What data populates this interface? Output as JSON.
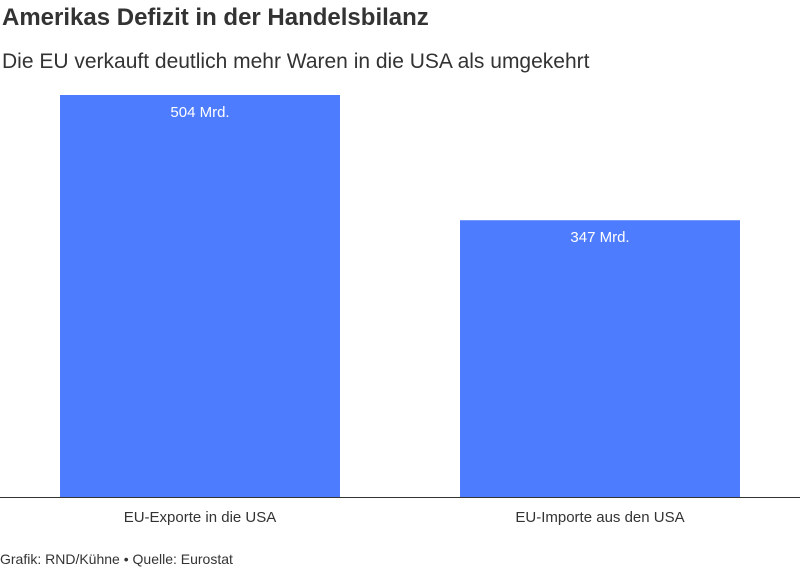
{
  "chart_data": {
    "type": "bar",
    "title": "Amerikas Defizit in der Handelsbilanz",
    "subtitle": "Die EU verkauft deutlich mehr Waren in die USA als umgekehrt",
    "categories": [
      "EU-Exporte in die USA",
      "EU-Importe aus den USA"
    ],
    "values": [
      504,
      347
    ],
    "data_labels": [
      "504 Mrd.",
      "347 Mrd."
    ],
    "ylim": [
      0,
      504
    ],
    "grid": false,
    "legend": "none",
    "bar_color": "#4d7cfe",
    "axis_color": "#333333"
  },
  "footer": {
    "credit": "Grafik: RND/Kühne",
    "separator": "•",
    "source": "Quelle: Eurostat"
  }
}
